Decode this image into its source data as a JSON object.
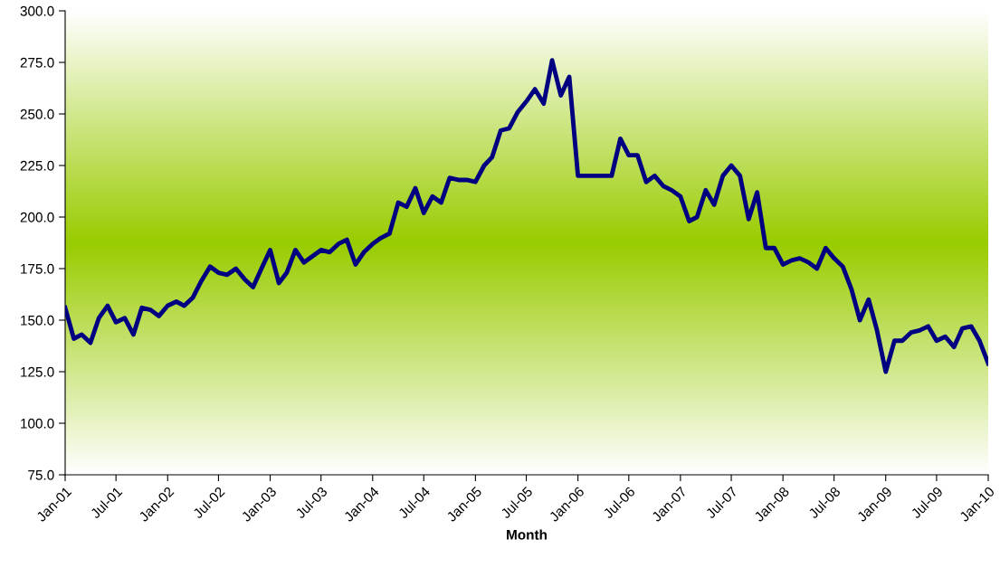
{
  "chart_data": {
    "type": "line",
    "xlabel": "Month",
    "x": [
      "2001-01",
      "2001-02",
      "2001-03",
      "2001-04",
      "2001-05",
      "2001-06",
      "2001-07",
      "2001-08",
      "2001-09",
      "2001-10",
      "2001-11",
      "2001-12",
      "2002-01",
      "2002-02",
      "2002-03",
      "2002-04",
      "2002-05",
      "2002-06",
      "2002-07",
      "2002-08",
      "2002-09",
      "2002-10",
      "2002-11",
      "2002-12",
      "2003-01",
      "2003-02",
      "2003-03",
      "2003-04",
      "2003-05",
      "2003-06",
      "2003-07",
      "2003-08",
      "2003-09",
      "2003-10",
      "2003-11",
      "2003-12",
      "2004-01",
      "2004-02",
      "2004-03",
      "2004-04",
      "2004-05",
      "2004-06",
      "2004-07",
      "2004-08",
      "2004-09",
      "2004-10",
      "2004-11",
      "2004-12",
      "2005-01",
      "2005-02",
      "2005-03",
      "2005-04",
      "2005-05",
      "2005-06",
      "2005-07",
      "2005-08",
      "2005-09",
      "2005-10",
      "2005-11",
      "2005-12",
      "2006-01",
      "2006-02",
      "2006-03",
      "2006-04",
      "2006-05",
      "2006-06",
      "2006-07",
      "2006-08",
      "2006-09",
      "2006-10",
      "2006-11",
      "2006-12",
      "2007-01",
      "2007-02",
      "2007-03",
      "2007-04",
      "2007-05",
      "2007-06",
      "2007-07",
      "2007-08",
      "2007-09",
      "2007-10",
      "2007-11",
      "2007-12",
      "2008-01",
      "2008-02",
      "2008-03",
      "2008-04",
      "2008-05",
      "2008-06",
      "2008-07",
      "2008-08",
      "2008-09",
      "2008-10",
      "2008-11",
      "2008-12",
      "2009-01",
      "2009-02",
      "2009-03",
      "2009-04",
      "2009-05",
      "2009-06",
      "2009-07",
      "2009-08",
      "2009-09",
      "2009-10",
      "2009-11",
      "2009-12",
      "2010-01"
    ],
    "series": [
      {
        "color": "#000080",
        "values": [
          156,
          141,
          143,
          139,
          151,
          157,
          149,
          151,
          143,
          156,
          155,
          152,
          157,
          159,
          157,
          161,
          169,
          176,
          173,
          172,
          175,
          170,
          166,
          175,
          184,
          168,
          173,
          184,
          178,
          181,
          184,
          183,
          187,
          189,
          177,
          183,
          187,
          190,
          192,
          207,
          205,
          214,
          202,
          210,
          207,
          219,
          218,
          218,
          217,
          225,
          229,
          242,
          243,
          251,
          256,
          262,
          255,
          276,
          259,
          268,
          220,
          220,
          220,
          220,
          220,
          238,
          230,
          230,
          217,
          220,
          215,
          213,
          210,
          198,
          200,
          213,
          206,
          220,
          225,
          220,
          199,
          212,
          185,
          185,
          177,
          179,
          180,
          178,
          175,
          185,
          180,
          176,
          165,
          150,
          160,
          145,
          125,
          140,
          140,
          144,
          145,
          147,
          140,
          142,
          137,
          146,
          147,
          140,
          129
        ]
      }
    ],
    "xlim": [
      "2001-01",
      "2010-01"
    ],
    "xticks": [
      {
        "value": "2001-01",
        "label": "Jan-01"
      },
      {
        "value": "2001-07",
        "label": "Jul-01"
      },
      {
        "value": "2002-01",
        "label": "Jan-02"
      },
      {
        "value": "2002-07",
        "label": "Jul-02"
      },
      {
        "value": "2003-01",
        "label": "Jan-03"
      },
      {
        "value": "2003-07",
        "label": "Jul-03"
      },
      {
        "value": "2004-01",
        "label": "Jan-04"
      },
      {
        "value": "2004-07",
        "label": "Jul-04"
      },
      {
        "value": "2005-01",
        "label": "Jan-05"
      },
      {
        "value": "2005-07",
        "label": "Jul-05"
      },
      {
        "value": "2006-01",
        "label": "Jan-06"
      },
      {
        "value": "2006-07",
        "label": "Jul-06"
      },
      {
        "value": "2007-01",
        "label": "Jan-07"
      },
      {
        "value": "2007-07",
        "label": "Jul-07"
      },
      {
        "value": "2008-01",
        "label": "Jan-08"
      },
      {
        "value": "2008-07",
        "label": "Jul-08"
      },
      {
        "value": "2009-01",
        "label": "Jan-09"
      },
      {
        "value": "2009-07",
        "label": "Jul-09"
      },
      {
        "value": "2010-01",
        "label": "Jan-10"
      }
    ],
    "ylim": [
      75,
      300
    ],
    "yticks": [
      {
        "value": 75,
        "label": "75.0"
      },
      {
        "value": 100,
        "label": "100.0"
      },
      {
        "value": 125,
        "label": "125.0"
      },
      {
        "value": 150,
        "label": "150.0"
      },
      {
        "value": 175,
        "label": "175.0"
      },
      {
        "value": 200,
        "label": "200.0"
      },
      {
        "value": 225,
        "label": "225.0"
      },
      {
        "value": 250,
        "label": "250.0"
      },
      {
        "value": 275,
        "label": "275.0"
      },
      {
        "value": 300,
        "label": "300.0"
      }
    ],
    "marker": "none",
    "line_style": "solid"
  }
}
